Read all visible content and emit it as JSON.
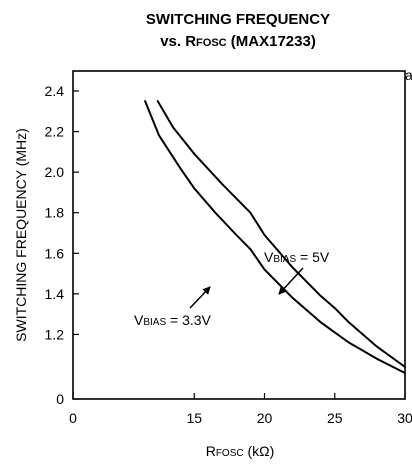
{
  "chart_data": {
    "type": "line",
    "title_line1": "SWITCHING FREQUENCY",
    "title_line2_prefix": "vs. R",
    "title_line2_sub": "FOSC",
    "title_line2_suffix": " (MAX17233)",
    "xlabel_prefix": "R",
    "xlabel_sub": "FOSC",
    "xlabel_suffix": " (kΩ)",
    "ylabel": "SWITCHING FREQUENCY (MHz)",
    "xlim": [
      0,
      30
    ],
    "x_ticks": [
      0,
      15,
      20,
      25,
      30
    ],
    "x_tick_labels": [
      "0",
      "15",
      "20",
      "25",
      "30"
    ],
    "y_ticks": [
      0,
      1.2,
      1.4,
      1.6,
      1.8,
      2.0,
      2.2,
      2.4
    ],
    "y_tick_labels": [
      "0",
      "1.2",
      "1.4",
      "1.6",
      "1.8",
      "2.0",
      "2.2",
      "2.4"
    ],
    "grid": false,
    "series": [
      {
        "name_prefix": "V",
        "name_sub": "BIAS",
        "name_suffix": " = 5V",
        "points": [
          [
            12.4,
            2.35
          ],
          [
            13.5,
            2.22
          ],
          [
            15,
            2.09
          ],
          [
            17,
            1.94
          ],
          [
            19,
            1.8
          ],
          [
            20,
            1.69
          ],
          [
            22,
            1.53
          ],
          [
            24,
            1.39
          ],
          [
            25,
            1.33
          ],
          [
            26,
            1.26
          ],
          [
            28,
            1.14
          ],
          [
            30,
            1.04
          ]
        ]
      },
      {
        "name_prefix": "V",
        "name_sub": "BIAS",
        "name_suffix": " = 3.3V",
        "points": [
          [
            11.5,
            2.35
          ],
          [
            12.5,
            2.18
          ],
          [
            14,
            2.02
          ],
          [
            15,
            1.92
          ],
          [
            16.5,
            1.8
          ],
          [
            18,
            1.69
          ],
          [
            19,
            1.62
          ],
          [
            20,
            1.52
          ],
          [
            22,
            1.38
          ],
          [
            24,
            1.26
          ],
          [
            25,
            1.21
          ],
          [
            26,
            1.16
          ],
          [
            28,
            1.08
          ],
          [
            30,
            1.01
          ]
        ]
      }
    ],
    "annotations": [
      {
        "series": 0,
        "at_x": 22.3,
        "at_y": 1.55
      },
      {
        "series": 1,
        "at_x": 18.2,
        "at_y": 1.62
      }
    ],
    "cropped_edge_text": "a"
  }
}
